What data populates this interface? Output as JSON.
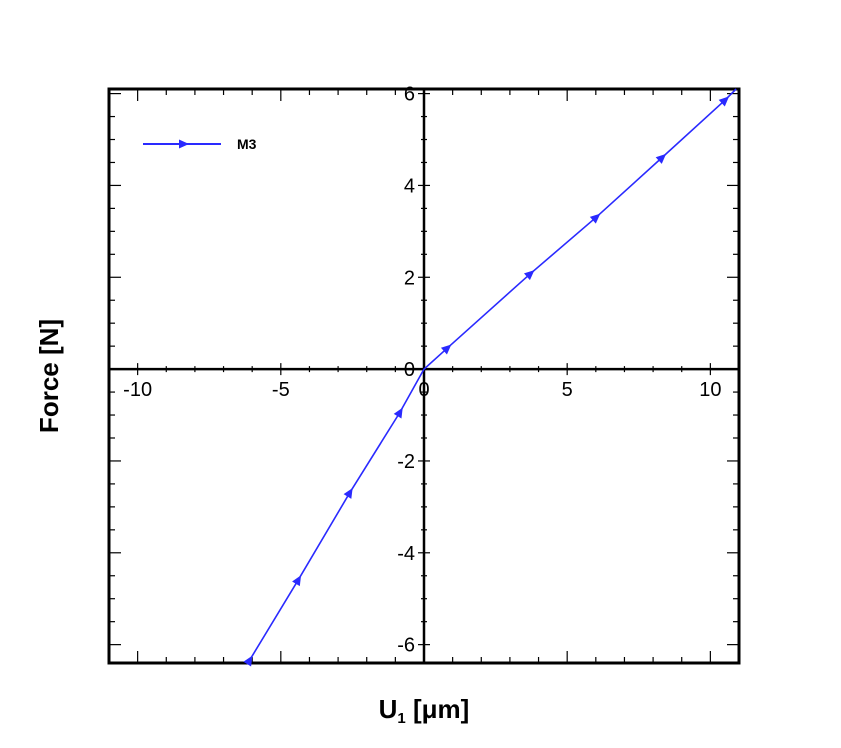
{
  "chart_data": {
    "type": "line",
    "xlabel": "U",
    "xlabel_sub": "1",
    "xlabel_unit": "[μm]",
    "ylabel": "Force [N]",
    "xlim": [
      -11,
      11
    ],
    "ylim": [
      -6.4,
      6.1
    ],
    "x_ticks": [
      -10,
      -5,
      0,
      5,
      10
    ],
    "y_ticks": [
      -6,
      -4,
      -2,
      0,
      2,
      4,
      6
    ],
    "grid": false,
    "legend_position": "top-left",
    "series": [
      {
        "name": "M3",
        "color": "#2a2aff",
        "marker": "right-triangle",
        "x": [
          -6.1,
          -4.4,
          -2.6,
          -0.85,
          0,
          0.8,
          3.7,
          6.0,
          8.3,
          10.5,
          10.9
        ],
        "y": [
          -6.35,
          -4.6,
          -2.7,
          -0.95,
          0,
          0.45,
          2.07,
          3.3,
          4.6,
          5.85,
          6.1
        ],
        "marker_indices": [
          0,
          1,
          2,
          3,
          5,
          6,
          7,
          8,
          9
        ]
      }
    ]
  }
}
